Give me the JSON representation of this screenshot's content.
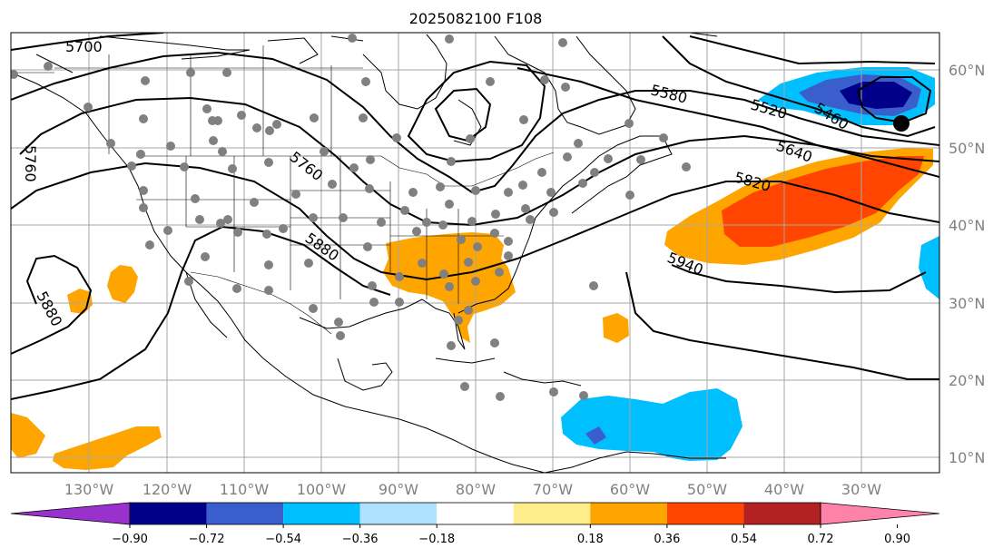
{
  "title": "2025082100 F108",
  "longitude_labels": [
    "130°W",
    "120°W",
    "110°W",
    "100°W",
    "90°W",
    "80°W",
    "70°W",
    "60°W",
    "50°W",
    "40°W",
    "30°W"
  ],
  "latitude_labels": [
    "60°N",
    "50°N",
    "40°N",
    "30°N",
    "20°N",
    "10°N"
  ],
  "contour_labels": [
    "5700",
    "5760",
    "5760",
    "5880",
    "5880",
    "5580",
    "5520",
    "5460",
    "5640",
    "5820",
    "5940"
  ],
  "colorbar": {
    "ticks": [
      "−0.90",
      "−0.72",
      "−0.54",
      "−0.36",
      "−0.18",
      "0.18",
      "0.36",
      "0.54",
      "0.72",
      "0.90"
    ],
    "colors": [
      "#9932cc",
      "#00008b",
      "#3a5fcd",
      "#00bfff",
      "#b0e2ff",
      "#ffffff",
      "#ffec8b",
      "#ffa500",
      "#ff4500",
      "#b22222",
      "#ff82ab"
    ]
  },
  "chart_data": {
    "type": "map",
    "title": "2025082100 F108",
    "contour_levels_labeled": [
      5460,
      5520,
      5580,
      5640,
      5700,
      5760,
      5820,
      5880,
      5940
    ],
    "shading_ticks": [
      -0.9,
      -0.72,
      -0.54,
      -0.36,
      -0.18,
      0.18,
      0.36,
      0.54,
      0.72,
      0.9
    ],
    "lon_ticks": [
      "130°W",
      "120°W",
      "110°W",
      "100°W",
      "90°W",
      "80°W",
      "70°W",
      "60°W",
      "50°W",
      "40°W",
      "30°W"
    ],
    "lat_ticks": [
      "60°N",
      "50°N",
      "40°N",
      "30°N",
      "20°N",
      "10°N"
    ],
    "grid": true
  }
}
